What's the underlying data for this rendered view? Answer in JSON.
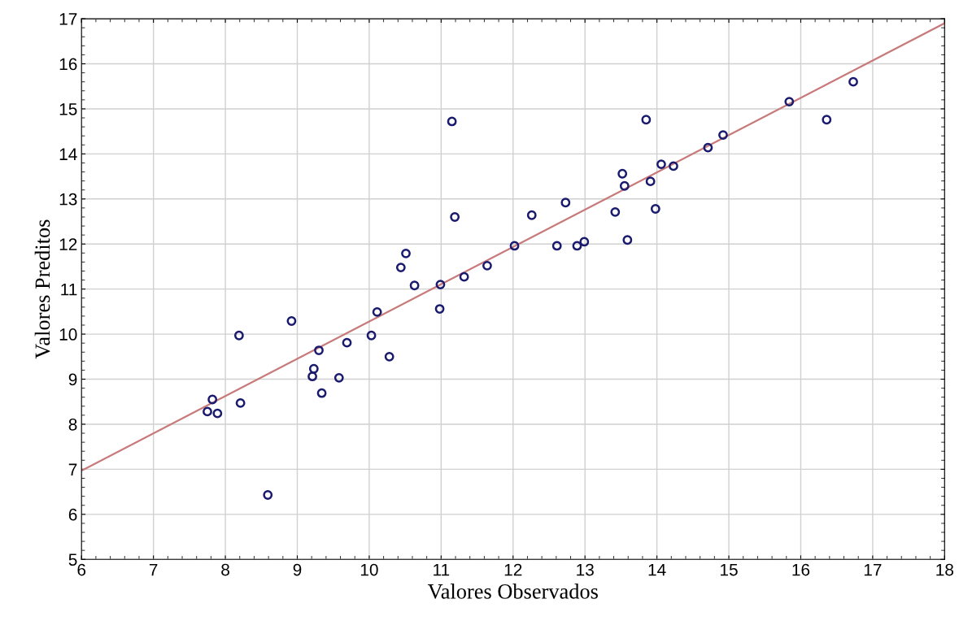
{
  "chart_data": {
    "type": "scatter",
    "xlabel": "Valores Observados",
    "ylabel": "Valores Preditos",
    "xlim": [
      6,
      18
    ],
    "ylim": [
      5,
      17
    ],
    "xticks": [
      6,
      7,
      8,
      9,
      10,
      11,
      12,
      13,
      14,
      15,
      16,
      17,
      18
    ],
    "yticks": [
      5,
      6,
      7,
      8,
      9,
      10,
      11,
      12,
      13,
      14,
      15,
      16,
      17
    ],
    "grid": true,
    "marker": "circle",
    "series": [
      {
        "color": "#1a1a6e",
        "x": [
          10.51,
          10.44,
          10.63,
          8.92,
          8.19,
          10.11,
          10.03,
          9.69,
          9.3,
          10.28,
          9.23,
          9.21,
          9.58,
          9.34,
          7.82,
          8.21,
          7.75,
          7.89,
          8.59,
          10.98,
          11.15,
          13.85,
          14.92,
          14.71,
          14.06,
          14.23,
          13.52,
          13.55,
          13.91,
          13.98,
          13.42,
          12.73,
          12.26,
          11.19,
          13.59,
          12.99,
          12.89,
          12.61,
          12.02,
          11.64,
          11.32,
          10.99,
          16.73,
          15.84,
          16.36
        ],
        "values": [
          11.79,
          11.48,
          11.08,
          10.29,
          9.97,
          10.49,
          9.97,
          9.81,
          9.64,
          9.5,
          9.23,
          9.06,
          9.03,
          8.69,
          8.55,
          8.47,
          8.28,
          8.24,
          6.43,
          10.56,
          14.72,
          14.76,
          14.42,
          14.14,
          13.77,
          13.73,
          13.56,
          13.29,
          13.39,
          12.78,
          12.71,
          12.92,
          12.64,
          12.6,
          12.09,
          12.05,
          11.96,
          11.96,
          11.96,
          11.52,
          11.27,
          11.1,
          15.6,
          15.16,
          14.76
        ]
      },
      {
        "type": "line",
        "marker": "none",
        "color": "#c87a7a",
        "x": [
          6,
          18
        ],
        "values": [
          6.97,
          16.9
        ]
      }
    ]
  }
}
